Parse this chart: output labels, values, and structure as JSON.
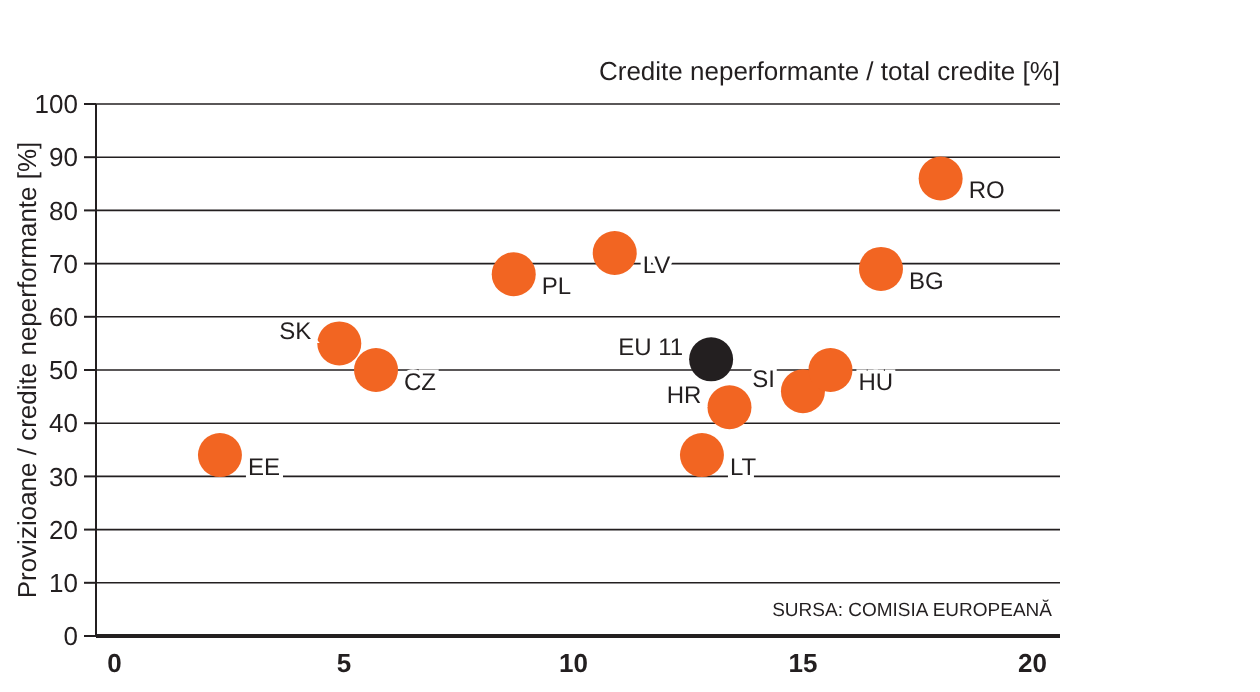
{
  "chart_data": {
    "type": "scatter",
    "xlabel": "Credite neperformante / total credite [%]",
    "ylabel": "Provizioane / credite neperformante [%]",
    "annotations": [
      "SURSA: COMISIA EUROPEANĂ"
    ],
    "xlim": [
      -0.4,
      20.6
    ],
    "xticks": [
      0,
      5,
      10,
      15,
      20
    ],
    "ylim": [
      0,
      100
    ],
    "yticks": [
      0,
      10,
      20,
      30,
      40,
      50,
      60,
      70,
      80,
      90,
      100
    ],
    "grid": "y",
    "marker": "circle",
    "series": [
      {
        "name": "EE",
        "color": "#f26522",
        "x": [
          2.3
        ],
        "values": [
          34
        ]
      },
      {
        "name": "SK",
        "color": "#f26522",
        "x": [
          4.9
        ],
        "values": [
          55
        ]
      },
      {
        "name": "CZ",
        "color": "#f26522",
        "x": [
          5.7
        ],
        "values": [
          50
        ]
      },
      {
        "name": "PL",
        "color": "#f26522",
        "x": [
          8.7
        ],
        "values": [
          68
        ]
      },
      {
        "name": "LV",
        "color": "#f26522",
        "x": [
          10.9
        ],
        "values": [
          72
        ]
      },
      {
        "name": "LT",
        "color": "#f26522",
        "x": [
          12.8
        ],
        "values": [
          34
        ]
      },
      {
        "name": "HR",
        "color": "#f26522",
        "x": [
          13.4
        ],
        "values": [
          43
        ]
      },
      {
        "name": "SI",
        "color": "#f26522",
        "x": [
          15.0
        ],
        "values": [
          46
        ]
      },
      {
        "name": "HU",
        "color": "#f26522",
        "x": [
          15.6
        ],
        "values": [
          50
        ]
      },
      {
        "name": "BG",
        "color": "#f26522",
        "x": [
          16.7
        ],
        "values": [
          69
        ]
      },
      {
        "name": "RO",
        "color": "#f26522",
        "x": [
          18.0
        ],
        "values": [
          86
        ]
      },
      {
        "name": "EU 11",
        "color": "#231f20",
        "x": [
          13.0
        ],
        "values": [
          52
        ]
      }
    ]
  }
}
